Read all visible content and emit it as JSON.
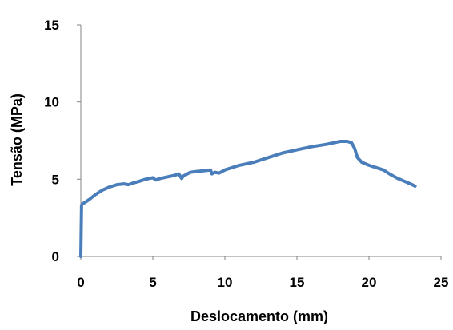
{
  "chart_data": {
    "type": "line",
    "title": "",
    "xlabel": "Deslocamento (mm)",
    "ylabel": "Tensão (MPa)",
    "xlim": [
      0,
      25
    ],
    "ylim": [
      0,
      15
    ],
    "x_ticks": [
      0,
      5,
      10,
      15,
      20,
      25
    ],
    "y_ticks": [
      0,
      5,
      10,
      15
    ],
    "x_tick_labels": [
      "0",
      "5",
      "10",
      "15",
      "20",
      "25"
    ],
    "y_tick_labels": [
      "0",
      "5",
      "10",
      "15"
    ],
    "grid": false,
    "legend": "none",
    "series": [
      {
        "color": "#4a7ebb",
        "x": [
          0.0,
          0.02,
          0.05,
          0.1,
          0.3,
          0.6,
          1.0,
          1.5,
          2.0,
          2.5,
          3.0,
          3.3,
          3.6,
          4.0,
          4.5,
          5.0,
          5.2,
          5.5,
          6.0,
          6.5,
          6.8,
          7.0,
          7.1,
          7.3,
          7.6,
          8.0,
          8.5,
          9.0,
          9.1,
          9.3,
          9.6,
          10.0,
          11.0,
          12.0,
          13.0,
          14.0,
          15.0,
          16.0,
          17.0,
          17.5,
          18.0,
          18.5,
          18.8,
          19.0,
          19.2,
          19.5,
          20.0,
          20.5,
          21.0,
          21.5,
          22.0,
          22.5,
          23.0,
          23.2
        ],
        "y": [
          0.0,
          1.5,
          3.3,
          3.4,
          3.5,
          3.7,
          4.0,
          4.3,
          4.5,
          4.65,
          4.7,
          4.65,
          4.75,
          4.85,
          5.0,
          5.1,
          4.95,
          5.05,
          5.15,
          5.25,
          5.35,
          5.05,
          5.2,
          5.3,
          5.45,
          5.5,
          5.55,
          5.6,
          5.35,
          5.45,
          5.4,
          5.6,
          5.9,
          6.1,
          6.4,
          6.7,
          6.9,
          7.1,
          7.25,
          7.35,
          7.45,
          7.45,
          7.35,
          7.0,
          6.4,
          6.1,
          5.9,
          5.75,
          5.6,
          5.3,
          5.05,
          4.85,
          4.65,
          4.55
        ]
      }
    ]
  }
}
